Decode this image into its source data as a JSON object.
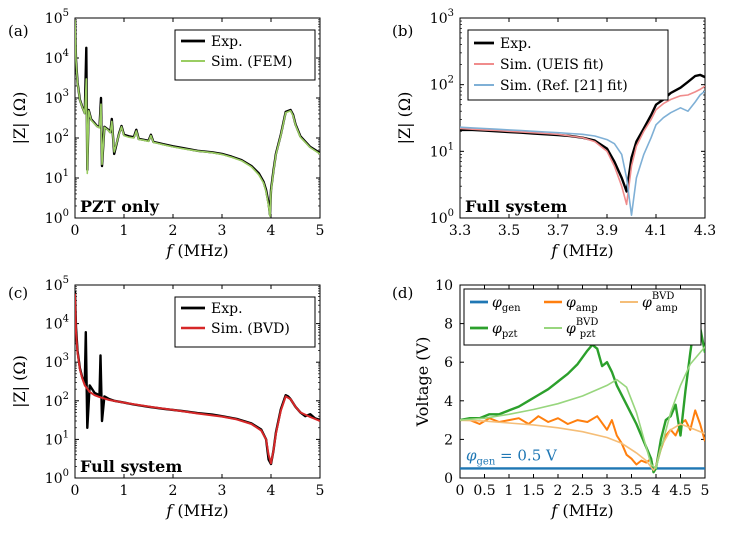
{
  "chart_data": [
    {
      "panel": "(a)",
      "type": "line",
      "yscale": "log",
      "ylabel": "|Z| (Ω)",
      "xlabel": "f (MHz)",
      "xlim": [
        0,
        5
      ],
      "ylim": [
        1,
        100000
      ],
      "x_ticks": [
        "0",
        "1",
        "2",
        "3",
        "4",
        "5"
      ],
      "y_ticks": [
        "10^0",
        "10^1",
        "10^2",
        "10^3",
        "10^4",
        "10^5"
      ],
      "annotation": "PZT only",
      "legend_position": "top-right",
      "series": [
        {
          "name": "Exp.",
          "color": "#000000",
          "width": 2.4,
          "x": [
            0.0,
            0.02,
            0.05,
            0.1,
            0.15,
            0.2,
            0.23,
            0.25,
            0.28,
            0.33,
            0.38,
            0.45,
            0.5,
            0.53,
            0.55,
            0.6,
            0.68,
            0.72,
            0.75,
            0.8,
            0.9,
            0.95,
            1.0,
            1.1,
            1.2,
            1.25,
            1.3,
            1.4,
            1.5,
            1.55,
            1.6,
            1.7,
            1.8,
            2.0,
            2.2,
            2.5,
            2.8,
            3.0,
            3.2,
            3.4,
            3.6,
            3.75,
            3.85,
            3.9,
            3.95,
            3.98,
            4.0,
            4.05,
            4.1,
            4.2,
            4.3,
            4.4,
            4.45,
            4.5,
            4.6,
            4.8,
            5.0
          ],
          "y": [
            90000,
            9000,
            2500,
            900,
            600,
            420,
            18000,
            16,
            500,
            290,
            250,
            200,
            185,
            1000,
            20,
            190,
            160,
            140,
            300,
            40,
            130,
            200,
            120,
            110,
            105,
            160,
            95,
            90,
            85,
            120,
            80,
            75,
            70,
            62,
            56,
            48,
            44,
            40,
            34,
            28,
            20,
            13,
            8,
            5,
            2.3,
            1.2,
            5,
            15,
            40,
            120,
            450,
            500,
            380,
            220,
            110,
            60,
            42
          ]
        },
        {
          "name": "Sim. (FEM)",
          "color": "#9ACD62",
          "width": 1.6,
          "x": [
            0.0,
            0.02,
            0.05,
            0.1,
            0.15,
            0.2,
            0.23,
            0.25,
            0.28,
            0.33,
            0.38,
            0.45,
            0.5,
            0.53,
            0.55,
            0.6,
            0.68,
            0.72,
            0.75,
            0.8,
            0.9,
            0.95,
            1.0,
            1.1,
            1.2,
            1.25,
            1.3,
            1.4,
            1.5,
            1.55,
            1.6,
            1.7,
            1.8,
            2.0,
            2.2,
            2.5,
            2.8,
            3.0,
            3.2,
            3.4,
            3.6,
            3.75,
            3.85,
            3.9,
            3.95,
            3.98,
            4.0,
            4.05,
            4.1,
            4.2,
            4.3,
            4.4,
            4.45,
            4.5,
            4.6,
            4.8,
            5.0
          ],
          "y": [
            90000,
            8500,
            2400,
            880,
            590,
            410,
            3000,
            13,
            480,
            280,
            240,
            195,
            180,
            700,
            22,
            185,
            155,
            135,
            260,
            45,
            125,
            190,
            115,
            105,
            100,
            150,
            92,
            88,
            82,
            115,
            78,
            73,
            68,
            60,
            54,
            47,
            43,
            39,
            33,
            27,
            19,
            12,
            7.5,
            4.5,
            2.0,
            1.1,
            4.5,
            14,
            38,
            115,
            430,
            480,
            360,
            210,
            105,
            58,
            40
          ]
        }
      ]
    },
    {
      "panel": "(b)",
      "type": "line",
      "yscale": "log",
      "ylabel": "|Z| (Ω)",
      "xlabel": "f (MHz)",
      "xlim": [
        3.3,
        4.3
      ],
      "ylim": [
        1,
        1000
      ],
      "x_ticks": [
        "3.3",
        "3.5",
        "3.7",
        "3.9",
        "4.1",
        "4.3"
      ],
      "y_ticks": [
        "10^0",
        "10^1",
        "10^2",
        "10^3"
      ],
      "annotation": "Full system",
      "legend_position": "top-right",
      "series": [
        {
          "name": "Exp.",
          "color": "#000000",
          "width": 2.4,
          "x": [
            3.3,
            3.35,
            3.4,
            3.45,
            3.5,
            3.55,
            3.6,
            3.65,
            3.7,
            3.75,
            3.8,
            3.85,
            3.9,
            3.93,
            3.96,
            3.98,
            4.0,
            4.02,
            4.05,
            4.08,
            4.1,
            4.13,
            4.16,
            4.2,
            4.23,
            4.26,
            4.28,
            4.3
          ],
          "y": [
            21,
            21,
            20.5,
            20,
            19.5,
            19,
            18.5,
            18,
            17.5,
            17,
            16,
            14.5,
            11,
            7,
            4,
            2.5,
            8,
            14,
            22,
            35,
            50,
            60,
            75,
            90,
            110,
            135,
            140,
            130
          ]
        },
        {
          "name": "Sim. (UEIS fit)",
          "color": "#F08C8C",
          "width": 1.6,
          "x": [
            3.3,
            3.35,
            3.4,
            3.45,
            3.5,
            3.55,
            3.6,
            3.65,
            3.7,
            3.75,
            3.8,
            3.85,
            3.9,
            3.93,
            3.96,
            3.98,
            4.0,
            4.02,
            4.05,
            4.08,
            4.1,
            4.13,
            4.16,
            4.2,
            4.23,
            4.26,
            4.28,
            4.3
          ],
          "y": [
            22,
            21.5,
            21,
            20.5,
            20,
            19.5,
            19,
            18.5,
            18,
            17,
            16,
            14,
            10,
            6,
            3,
            1.6,
            6,
            12,
            20,
            30,
            42,
            52,
            60,
            68,
            70,
            78,
            85,
            95
          ]
        },
        {
          "name": "Sim. (Ref. [21] fit)",
          "color": "#7FB0D6",
          "width": 1.6,
          "x": [
            3.3,
            3.35,
            3.4,
            3.45,
            3.5,
            3.55,
            3.6,
            3.65,
            3.7,
            3.75,
            3.8,
            3.85,
            3.9,
            3.93,
            3.96,
            3.98,
            4.0,
            4.02,
            4.05,
            4.08,
            4.1,
            4.13,
            4.16,
            4.2,
            4.23,
            4.26,
            4.28,
            4.3
          ],
          "y": [
            23,
            22.5,
            22,
            21.5,
            21,
            20.5,
            20,
            19.5,
            19,
            18.5,
            18,
            17,
            15,
            13,
            9,
            4,
            1.1,
            4,
            9,
            16,
            25,
            32,
            38,
            45,
            40,
            55,
            70,
            80
          ]
        }
      ]
    },
    {
      "panel": "(c)",
      "type": "line",
      "yscale": "log",
      "ylabel": "|Z| (Ω)",
      "xlabel": "f (MHz)",
      "xlim": [
        0,
        5
      ],
      "ylim": [
        1,
        100000
      ],
      "x_ticks": [
        "0",
        "1",
        "2",
        "3",
        "4",
        "5"
      ],
      "y_ticks": [
        "10^0",
        "10^1",
        "10^2",
        "10^3",
        "10^4",
        "10^5"
      ],
      "annotation": "Full system",
      "legend_position": "top-right",
      "series": [
        {
          "name": "Exp.",
          "color": "#000000",
          "width": 2.4,
          "x": [
            0.0,
            0.02,
            0.05,
            0.1,
            0.15,
            0.2,
            0.22,
            0.25,
            0.3,
            0.4,
            0.5,
            0.52,
            0.55,
            0.6,
            0.7,
            0.8,
            1.0,
            1.2,
            1.5,
            1.8,
            2.0,
            2.2,
            2.5,
            2.8,
            3.0,
            3.3,
            3.6,
            3.8,
            3.9,
            3.95,
            4.0,
            4.05,
            4.1,
            4.2,
            4.3,
            4.35,
            4.4,
            4.5,
            4.6,
            4.7,
            4.8,
            4.9,
            5.0
          ],
          "y": [
            70000,
            8000,
            2000,
            700,
            400,
            300,
            6000,
            20,
            250,
            160,
            140,
            1500,
            30,
            130,
            110,
            100,
            90,
            80,
            70,
            62,
            58,
            54,
            48,
            44,
            40,
            34,
            26,
            18,
            10,
            3,
            2.3,
            5,
            15,
            60,
            140,
            130,
            110,
            70,
            50,
            40,
            45,
            35,
            32
          ]
        },
        {
          "name": "Sim. (BVD)",
          "color": "#D62728",
          "width": 2.0,
          "x": [
            0.0,
            0.02,
            0.05,
            0.1,
            0.15,
            0.2,
            0.3,
            0.4,
            0.5,
            0.7,
            1.0,
            1.3,
            1.6,
            2.0,
            2.5,
            3.0,
            3.3,
            3.6,
            3.8,
            3.9,
            3.95,
            4.0,
            4.05,
            4.1,
            4.2,
            4.3,
            4.4,
            4.5,
            4.6,
            4.8,
            5.0
          ],
          "y": [
            60000,
            6000,
            1800,
            650,
            380,
            250,
            170,
            140,
            125,
            105,
            90,
            78,
            68,
            58,
            47,
            39,
            33,
            25,
            17,
            10,
            4,
            2.4,
            5,
            14,
            55,
            130,
            110,
            70,
            50,
            38,
            30
          ]
        }
      ]
    },
    {
      "panel": "(d)",
      "type": "line",
      "yscale": "linear",
      "ylabel": "Voltage (V)",
      "xlabel": "f (MHz)",
      "xlim": [
        0,
        5
      ],
      "ylim": [
        0,
        10
      ],
      "x_ticks": [
        "0",
        "0.5",
        "1",
        "1.5",
        "2",
        "2.5",
        "3",
        "3.5",
        "4",
        "4.5",
        "5"
      ],
      "y_ticks": [
        "0",
        "2",
        "4",
        "6",
        "8",
        "10"
      ],
      "annotation": "φgen = 0.5 V",
      "legend_position": "top",
      "series": [
        {
          "name": "φgen",
          "color": "#1F77B4",
          "width": 2.4,
          "x": [
            0,
            5
          ],
          "y": [
            0.5,
            0.5
          ]
        },
        {
          "name": "φamp",
          "color": "#FF7F0E",
          "width": 2.0,
          "x": [
            0.0,
            0.2,
            0.4,
            0.6,
            0.8,
            1.0,
            1.2,
            1.4,
            1.6,
            1.8,
            2.0,
            2.2,
            2.4,
            2.6,
            2.8,
            3.0,
            3.1,
            3.2,
            3.3,
            3.4,
            3.5,
            3.6,
            3.7,
            3.8,
            3.9,
            3.95,
            4.0,
            4.1,
            4.2,
            4.3,
            4.4,
            4.5,
            4.6,
            4.7,
            4.8,
            4.9,
            5.0
          ],
          "y": [
            3.0,
            3.0,
            2.8,
            3.1,
            2.9,
            3.0,
            3.1,
            2.8,
            3.2,
            2.9,
            3.1,
            2.8,
            3.0,
            2.9,
            3.2,
            2.5,
            3.0,
            2.2,
            1.8,
            1.2,
            1.0,
            0.7,
            0.9,
            0.8,
            1.0,
            0.4,
            0.6,
            1.5,
            2.2,
            2.5,
            2.2,
            2.8,
            3.0,
            2.5,
            3.5,
            2.8,
            1.9
          ]
        },
        {
          "name": "φpzt",
          "color": "#2CA02C",
          "width": 2.4,
          "x": [
            0.0,
            0.2,
            0.4,
            0.6,
            0.8,
            1.0,
            1.2,
            1.4,
            1.6,
            1.8,
            2.0,
            2.2,
            2.4,
            2.6,
            2.7,
            2.8,
            2.9,
            3.0,
            3.1,
            3.2,
            3.4,
            3.6,
            3.8,
            3.9,
            3.95,
            4.0,
            4.1,
            4.2,
            4.3,
            4.4,
            4.5,
            4.6,
            4.7,
            4.8,
            4.9,
            5.0
          ],
          "y": [
            3.0,
            3.1,
            3.1,
            3.3,
            3.3,
            3.5,
            3.7,
            4.0,
            4.3,
            4.6,
            5.0,
            5.4,
            5.9,
            6.6,
            6.9,
            6.7,
            5.8,
            6.0,
            5.5,
            4.8,
            3.8,
            2.8,
            1.6,
            1.0,
            0.3,
            0.5,
            2.0,
            3.0,
            3.2,
            3.8,
            2.2,
            4.5,
            6.5,
            8.3,
            7.8,
            6.5
          ]
        },
        {
          "name": "φamp BVD",
          "color": "#F5BE78",
          "width": 1.6,
          "x": [
            0.0,
            0.5,
            1.0,
            1.5,
            2.0,
            2.5,
            3.0,
            3.3,
            3.6,
            3.8,
            3.95,
            4.0,
            4.1,
            4.3,
            4.5,
            4.7,
            5.0
          ],
          "y": [
            3.0,
            2.95,
            2.85,
            2.75,
            2.6,
            2.4,
            2.1,
            1.8,
            1.3,
            0.9,
            0.4,
            0.6,
            1.6,
            2.5,
            2.8,
            2.6,
            2.3
          ]
        },
        {
          "name": "φpzt BVD",
          "color": "#98D67E",
          "width": 1.6,
          "x": [
            0.0,
            0.5,
            1.0,
            1.5,
            2.0,
            2.5,
            3.0,
            3.2,
            3.4,
            3.6,
            3.8,
            3.9,
            4.0,
            4.1,
            4.3,
            4.5,
            4.7,
            5.0
          ],
          "y": [
            3.0,
            3.1,
            3.3,
            3.55,
            3.85,
            4.25,
            4.8,
            5.1,
            4.7,
            3.4,
            1.6,
            0.7,
            0.5,
            1.5,
            3.4,
            4.8,
            5.9,
            6.8
          ]
        }
      ]
    }
  ],
  "labels": {
    "panel_a": "(a)",
    "panel_b": "(b)",
    "panel_c": "(c)",
    "panel_d": "(d)"
  }
}
